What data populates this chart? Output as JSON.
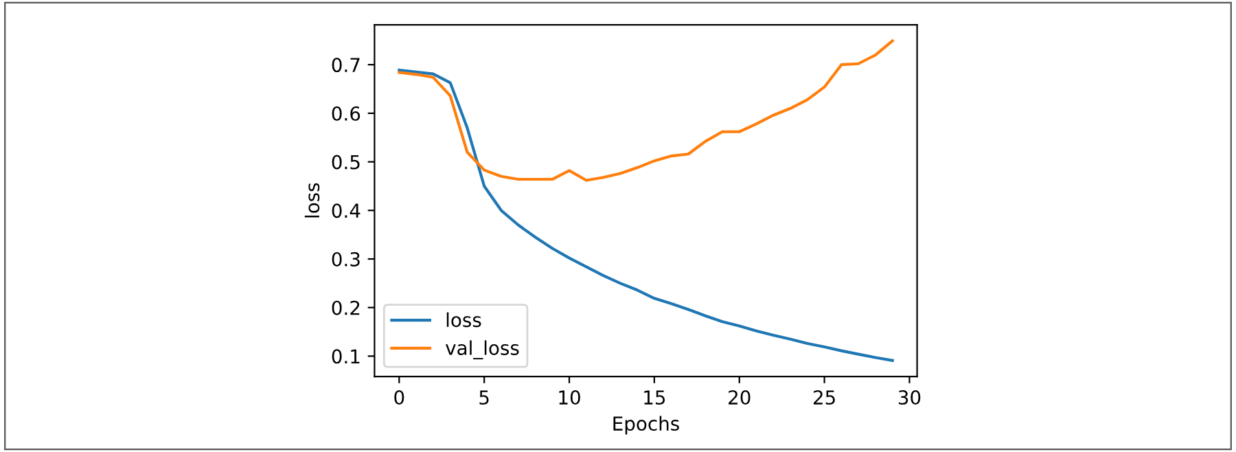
{
  "chart_data": {
    "type": "line",
    "xlabel": "Epochs",
    "ylabel": "loss",
    "x": [
      0,
      1,
      2,
      3,
      4,
      5,
      6,
      7,
      8,
      9,
      10,
      11,
      12,
      13,
      14,
      15,
      16,
      17,
      18,
      19,
      20,
      21,
      22,
      23,
      24,
      25,
      26,
      27,
      28,
      29
    ],
    "series": [
      {
        "name": "loss",
        "color": "#1f77b4",
        "values": [
          0.689,
          0.685,
          0.681,
          0.663,
          0.57,
          0.45,
          0.4,
          0.37,
          0.345,
          0.322,
          0.302,
          0.284,
          0.266,
          0.25,
          0.236,
          0.219,
          0.208,
          0.196,
          0.183,
          0.171,
          0.162,
          0.152,
          0.143,
          0.135,
          0.126,
          0.119,
          0.111,
          0.104,
          0.097,
          0.091
        ]
      },
      {
        "name": "val_loss",
        "color": "#ff7f0e",
        "values": [
          0.684,
          0.68,
          0.674,
          0.636,
          0.52,
          0.483,
          0.47,
          0.464,
          0.464,
          0.464,
          0.482,
          0.462,
          0.468,
          0.476,
          0.488,
          0.502,
          0.512,
          0.516,
          0.542,
          0.562,
          0.562,
          0.578,
          0.596,
          0.61,
          0.628,
          0.654,
          0.7,
          0.702,
          0.72,
          0.749
        ]
      }
    ],
    "xlim": [
      -1.45,
      30.45
    ],
    "ylim": [
      0.058,
      0.782
    ],
    "xticks": [
      0,
      5,
      10,
      15,
      20,
      25,
      30
    ],
    "yticks": [
      0.1,
      0.2,
      0.3,
      0.4,
      0.5,
      0.6,
      0.7
    ],
    "grid": false,
    "legend": "bottom left",
    "marker": "none",
    "line_style": "solid"
  }
}
